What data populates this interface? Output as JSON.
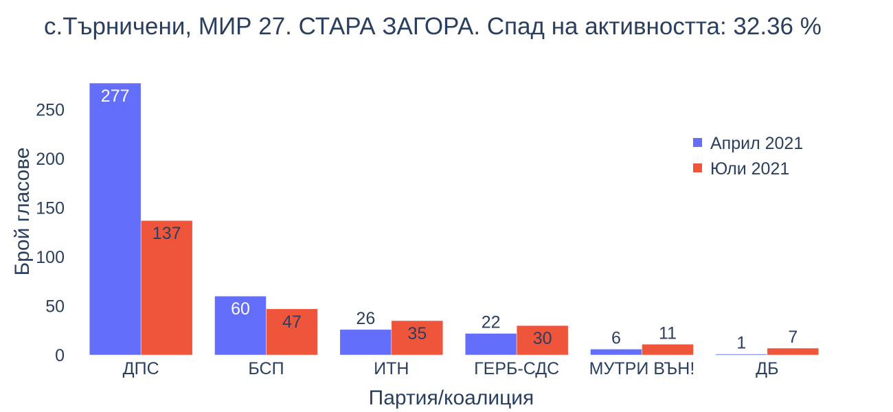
{
  "chart_data": {
    "type": "bar",
    "title": "с.Търничени, МИР 27. СТАРА ЗАГОРА. Спад на активността: 32.36 %",
    "xlabel": "Партия/коалиция",
    "ylabel": "Брой гласове",
    "categories": [
      "ДПС",
      "БСП",
      "ИТН",
      "ГЕРБ-СДС",
      "МУТРИ ВЪН!",
      "ДБ"
    ],
    "series": [
      {
        "name": "Април 2021",
        "color": "#636efa",
        "values": [
          277,
          60,
          26,
          22,
          6,
          1
        ]
      },
      {
        "name": "Юли 2021",
        "color": "#ef553b",
        "values": [
          137,
          47,
          35,
          30,
          11,
          7
        ]
      }
    ],
    "ylim": [
      0,
      290
    ],
    "yticks": [
      0,
      50,
      100,
      150,
      200,
      250
    ],
    "grid": false,
    "legend_position": "top-right"
  }
}
